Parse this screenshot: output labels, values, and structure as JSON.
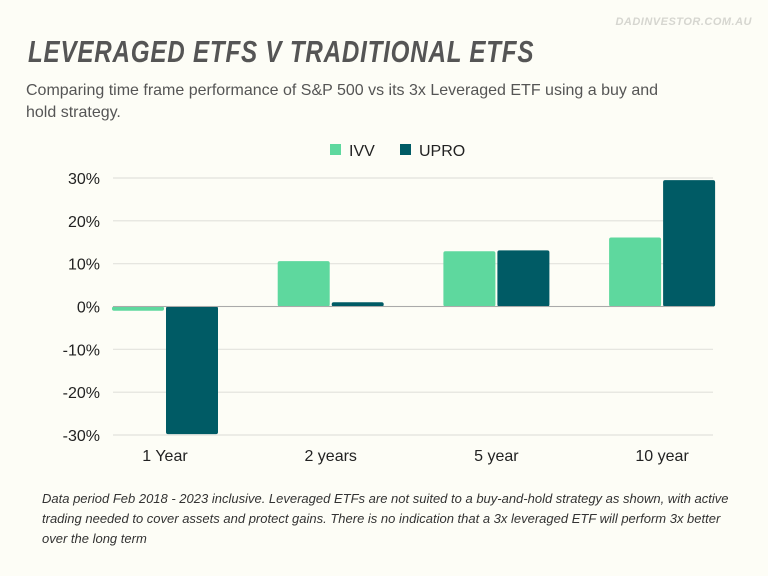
{
  "site": "DADINVESTOR.COM.AU",
  "title": "LEVERAGED ETFS V TRADITIONAL ETFS",
  "subtitle": "Comparing time frame performance of S&P 500 vs its 3x Leveraged ETF using a buy and hold strategy.",
  "footnote": "Data period Feb 2018 - 2023 inclusive. Leveraged ETFs are not suited to a buy-and-hold strategy as shown, with active trading needed to cover assets and protect gains. There is no indication that a 3x leveraged ETF will perform 3x better over the long term",
  "chart_data": {
    "type": "bar",
    "categories": [
      "1 Year",
      "2 years",
      "5 year",
      "10 year"
    ],
    "series": [
      {
        "name": "IVV",
        "color": "#5ed89e",
        "values": [
          -1,
          10.6,
          12.9,
          16.1
        ]
      },
      {
        "name": "UPRO",
        "color": "#005b65",
        "values": [
          -29.8,
          1.0,
          13.1,
          29.5
        ]
      }
    ],
    "yticks": [
      30,
      20,
      10,
      0,
      -10,
      -20,
      -30
    ],
    "ytick_labels": [
      "30%",
      "20%",
      "10%",
      "0%",
      "-10%",
      "-20%",
      "-30%"
    ],
    "ylim": [
      -30,
      30
    ],
    "grid": true,
    "legend": "top-center"
  }
}
